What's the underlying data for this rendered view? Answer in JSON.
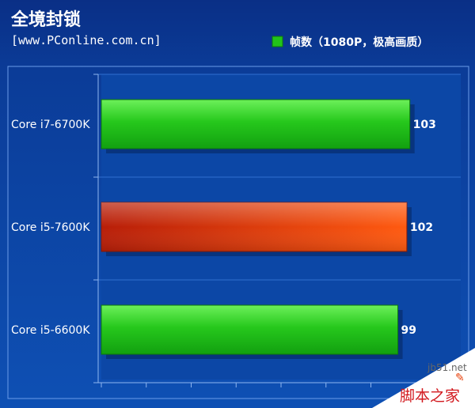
{
  "chart_data": {
    "type": "bar",
    "orientation": "horizontal",
    "title": "全境封锁",
    "source": "[www.PConline.com.cn]",
    "legend": {
      "label": "帧数（1080P，极高画质）",
      "position": "top-right",
      "color": "#22c41a"
    },
    "categories": [
      "Core i7-6700K",
      "Core i5-7600K",
      "Core i5-6600K"
    ],
    "series": [
      {
        "name": "帧数（1080P，极高画质）",
        "values": [
          103,
          102,
          99
        ]
      }
    ],
    "bar_colors": [
      "#22c41a",
      "#e8400a",
      "#22c41a"
    ],
    "xlim": [
      0,
      120
    ],
    "grid": true
  },
  "watermark": {
    "site": "jb51.net",
    "brand": "脚本之家"
  },
  "colors": {
    "background": "#0a3f9c",
    "plot_area": "#0d4aa8",
    "green": "#22c41a",
    "orange": "#e8400a"
  }
}
